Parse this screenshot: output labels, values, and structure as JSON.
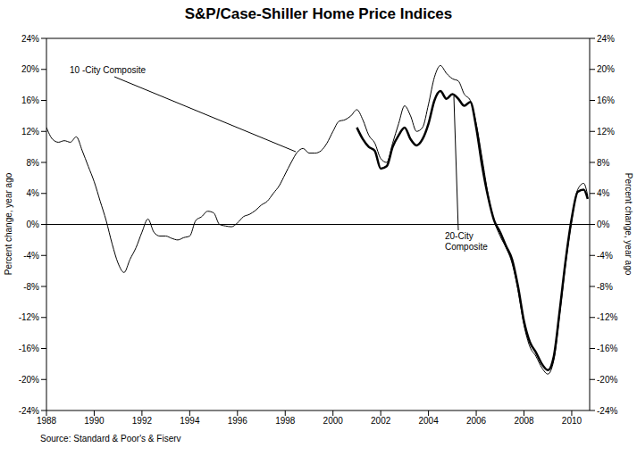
{
  "chart_data": {
    "type": "line",
    "title": "S&P/Case-Shiller Home Price Indices",
    "ylabel": "Percent change, year ago",
    "y2label": "Percent change, year ago",
    "source": "Source: Standard & Poor's & Fiserv",
    "annotations": [
      "10 -City Composite",
      "20-City Composite"
    ],
    "x": [
      1988,
      1988.25,
      1988.5,
      1988.75,
      1989,
      1989.25,
      1989.5,
      1989.75,
      1990,
      1990.25,
      1990.5,
      1990.75,
      1991,
      1991.25,
      1991.5,
      1991.75,
      1992,
      1992.25,
      1992.5,
      1992.75,
      1993,
      1993.25,
      1993.5,
      1993.75,
      1994,
      1994.25,
      1994.5,
      1994.75,
      1995,
      1995.25,
      1995.5,
      1995.75,
      1996,
      1996.25,
      1996.5,
      1996.75,
      1997,
      1997.25,
      1997.5,
      1997.75,
      1998,
      1998.25,
      1998.5,
      1998.75,
      1999,
      1999.25,
      1999.5,
      1999.75,
      2000,
      2000.25,
      2000.5,
      2000.75,
      2001,
      2001.25,
      2001.5,
      2001.75,
      2002,
      2002.25,
      2002.5,
      2002.75,
      2003,
      2003.25,
      2003.5,
      2003.75,
      2004,
      2004.25,
      2004.5,
      2004.75,
      2005,
      2005.25,
      2005.5,
      2005.75,
      2006,
      2006.25,
      2006.5,
      2006.75,
      2007,
      2007.25,
      2007.5,
      2007.75,
      2008,
      2008.25,
      2008.5,
      2008.75,
      2009,
      2009.25,
      2009.5,
      2009.75,
      2010,
      2010.25,
      2010.5,
      2010.67
    ],
    "series": [
      {
        "name": "10 -City Composite",
        "color": "#000000",
        "values": [
          12.5,
          11.0,
          10.6,
          10.8,
          10.6,
          11.3,
          9.5,
          7.5,
          5.5,
          3.0,
          0.5,
          -2.5,
          -5.0,
          -6.2,
          -4.5,
          -3.0,
          -1.0,
          0.7,
          -1.0,
          -1.5,
          -1.5,
          -1.8,
          -2.0,
          -1.7,
          -1.5,
          0.5,
          1.0,
          1.7,
          1.5,
          0.0,
          -0.2,
          -0.3,
          0.2,
          1.0,
          1.3,
          1.8,
          2.5,
          3.0,
          4.0,
          5.0,
          6.5,
          8.0,
          9.3,
          9.8,
          9.2,
          9.2,
          9.5,
          10.5,
          12.0,
          13.3,
          13.5,
          14.0,
          14.8,
          13.5,
          11.5,
          10.5,
          8.5,
          8.0,
          10.5,
          13.0,
          15.3,
          14.0,
          12.0,
          12.5,
          15.5,
          19.0,
          20.5,
          19.5,
          18.8,
          18.5,
          16.8,
          16.0,
          13.0,
          8.5,
          3.8,
          0.5,
          -1.5,
          -3.0,
          -5.0,
          -8.5,
          -13.0,
          -15.8,
          -17.0,
          -18.5,
          -19.3,
          -17.5,
          -11.5,
          -5.0,
          0.5,
          4.5,
          5.3,
          3.7
        ]
      },
      {
        "name": "20-City Composite",
        "color": "#000000",
        "values": [
          null,
          null,
          null,
          null,
          null,
          null,
          null,
          null,
          null,
          null,
          null,
          null,
          null,
          null,
          null,
          null,
          null,
          null,
          null,
          null,
          null,
          null,
          null,
          null,
          null,
          null,
          null,
          null,
          null,
          null,
          null,
          null,
          null,
          null,
          null,
          null,
          null,
          null,
          null,
          null,
          null,
          null,
          null,
          null,
          null,
          null,
          null,
          null,
          null,
          null,
          null,
          null,
          12.5,
          11.0,
          10.0,
          9.5,
          7.2,
          7.5,
          10.0,
          11.5,
          12.5,
          11.0,
          10.2,
          11.0,
          13.0,
          16.0,
          17.2,
          16.2,
          16.8,
          16.2,
          15.3,
          15.8,
          12.5,
          7.5,
          3.5,
          0.5,
          -1.0,
          -2.8,
          -4.5,
          -8.0,
          -12.5,
          -15.2,
          -16.5,
          -18.0,
          -18.8,
          -17.0,
          -11.0,
          -4.5,
          0.8,
          4.2,
          4.5,
          3.3
        ]
      }
    ],
    "xlim": [
      1988,
      2010.75
    ],
    "xticks": [
      1988,
      1990,
      1992,
      1994,
      1996,
      1998,
      2000,
      2002,
      2004,
      2006,
      2008,
      2010
    ],
    "ylim": [
      -24,
      24
    ],
    "yticks": [
      {
        "value": -24,
        "label": "-24%"
      },
      {
        "value": -20,
        "label": "-20%"
      },
      {
        "value": -16,
        "label": "-16%"
      },
      {
        "value": -12,
        "label": "-12%"
      },
      {
        "value": -8,
        "label": "-8%"
      },
      {
        "value": -4,
        "label": "-4%"
      },
      {
        "value": 0,
        "label": "0%"
      },
      {
        "value": 4,
        "label": "4%"
      },
      {
        "value": 8,
        "label": "8%"
      },
      {
        "value": 12,
        "label": "12%"
      },
      {
        "value": 16,
        "label": "16%"
      },
      {
        "value": 20,
        "label": "20%"
      },
      {
        "value": 24,
        "label": "24%"
      }
    ],
    "y2lim": [
      -24,
      24
    ],
    "y2ticks": [
      {
        "value": -24,
        "label": "-24%"
      },
      {
        "value": -20,
        "label": "-20%"
      },
      {
        "value": -16,
        "label": "-16%"
      },
      {
        "value": -12,
        "label": "-12%"
      },
      {
        "value": -8,
        "label": "-8%"
      },
      {
        "value": -4,
        "label": "-4%"
      },
      {
        "value": 0,
        "label": "0%"
      },
      {
        "value": 4,
        "label": "4%"
      },
      {
        "value": 8,
        "label": "8%"
      },
      {
        "value": 12,
        "label": "12%"
      },
      {
        "value": 16,
        "label": "16%"
      },
      {
        "value": 20,
        "label": "20%"
      },
      {
        "value": 24,
        "label": "24%"
      }
    ],
    "grid": false,
    "legend": "none"
  }
}
